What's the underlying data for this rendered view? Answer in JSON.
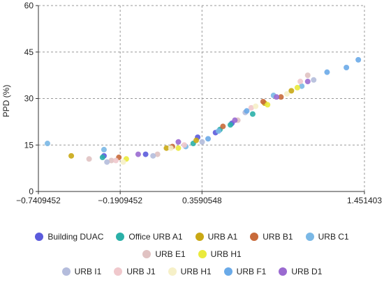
{
  "chart_data": {
    "type": "scatter",
    "title": "",
    "xlabel": "",
    "ylabel": "PPD (%)",
    "xlim": [
      -0.7409452,
      1.451403
    ],
    "ylim": [
      0,
      60
    ],
    "x_ticks": [
      -0.7409452,
      -0.1909452,
      0.3590548,
      1.451403
    ],
    "x_tick_labels": [
      "−0.7409452",
      "−0.1909452",
      "0.3590548",
      "1.451403"
    ],
    "y_ticks": [
      0,
      15,
      30,
      45,
      60
    ],
    "grid": true,
    "legend_position": "bottom",
    "series": [
      {
        "name": "Building DUAC",
        "color": "#5b5bdc",
        "points": [
          [
            -0.3,
            11.5
          ],
          [
            -0.02,
            12.0
          ],
          [
            0.33,
            17.5
          ],
          [
            0.45,
            19.0
          ],
          [
            0.56,
            22.0
          ]
        ]
      },
      {
        "name": "Office URB A1",
        "color": "#2ab0a8",
        "points": [
          [
            -0.31,
            11.0
          ],
          [
            0.3,
            15.5
          ],
          [
            0.48,
            20.0
          ],
          [
            0.55,
            21.5
          ],
          [
            0.7,
            25.0
          ]
        ]
      },
      {
        "name": "URB A1",
        "color": "#c9a814",
        "points": [
          [
            -0.52,
            11.5
          ],
          [
            0.12,
            14.0
          ],
          [
            0.32,
            16.5
          ],
          [
            0.78,
            28.5
          ],
          [
            0.96,
            32.5
          ]
        ]
      },
      {
        "name": "URB B1",
        "color": "#c86a3a",
        "points": [
          [
            -0.2,
            11.0
          ],
          [
            0.16,
            14.5
          ],
          [
            0.5,
            21.0
          ],
          [
            0.77,
            29.0
          ],
          [
            0.89,
            30.5
          ]
        ]
      },
      {
        "name": "URB C1",
        "color": "#7ab8e6",
        "points": [
          [
            -0.68,
            15.5
          ],
          [
            -0.3,
            13.5
          ],
          [
            0.25,
            14.5
          ],
          [
            0.47,
            19.5
          ],
          [
            0.84,
            31.0
          ],
          [
            1.03,
            34.0
          ]
        ]
      },
      {
        "name": "URB E1",
        "color": "#e0c2c2",
        "points": [
          [
            -0.4,
            10.5
          ],
          [
            -0.25,
            10.0
          ],
          [
            0.06,
            12.0
          ],
          [
            0.6,
            23.0
          ],
          [
            1.07,
            37.5
          ]
        ]
      },
      {
        "name": "URB H1",
        "color": "#eaea3c",
        "points": [
          [
            -0.15,
            10.5
          ],
          [
            0.2,
            14.0
          ],
          [
            0.8,
            28.0
          ],
          [
            1.0,
            33.5
          ]
        ]
      },
      {
        "name": "URB I1",
        "color": "#b4bcdc",
        "points": [
          [
            -0.28,
            9.5
          ],
          [
            0.03,
            11.5
          ],
          [
            0.36,
            16.0
          ],
          [
            0.65,
            25.5
          ],
          [
            1.11,
            36.0
          ]
        ]
      },
      {
        "name": "URB J1",
        "color": "#f0c8cc",
        "points": [
          [
            -0.22,
            10.0
          ],
          [
            0.24,
            15.0
          ],
          [
            0.69,
            27.0
          ],
          [
            1.02,
            35.5
          ]
        ]
      },
      {
        "name": "URB H1",
        "color": "#f6f0c8",
        "points": [
          [
            -0.17,
            9.5
          ],
          [
            0.15,
            14.0
          ],
          [
            0.72,
            27.5
          ],
          [
            0.93,
            31.5
          ]
        ]
      },
      {
        "name": "URB F1",
        "color": "#6aaae8",
        "points": [
          [
            0.4,
            17.0
          ],
          [
            0.66,
            26.0
          ],
          [
            1.2,
            38.5
          ],
          [
            1.33,
            40.0
          ],
          [
            1.41,
            42.5
          ]
        ]
      },
      {
        "name": "URB D1",
        "color": "#9a6ad0",
        "points": [
          [
            -0.07,
            12.0
          ],
          [
            0.2,
            16.0
          ],
          [
            0.58,
            23.0
          ],
          [
            0.86,
            30.5
          ],
          [
            1.07,
            35.5
          ]
        ]
      }
    ]
  },
  "legend_rows": [
    [
      0,
      1,
      2,
      3,
      4
    ],
    [
      5,
      6
    ],
    [
      7,
      8,
      9,
      10,
      11
    ]
  ]
}
